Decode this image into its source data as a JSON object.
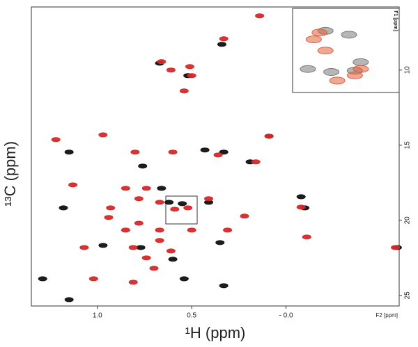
{
  "chart_data": [
    {
      "type": "scatter",
      "xlabel": "¹H (ppm)",
      "ylabel": "¹³C (ppm)",
      "x_unit_label": "F2 [ppm]",
      "xlim": [
        1.35,
        -0.6
      ],
      "ylim": [
        25.7,
        5.8
      ],
      "xticks": [
        {
          "value": 1,
          "label": "1.0"
        },
        0.5,
        {
          "value": 0,
          "label": "- 0.0"
        }
      ],
      "yticks": [
        10,
        15,
        20,
        25
      ],
      "series": [
        {
          "color": "#111111",
          "x": [
            0.34,
            0.67,
            0.52,
            0.43,
            0.33,
            1.15,
            0.76,
            0.66,
            1.18,
            0.62,
            0.55,
            -0.08,
            -0.1,
            0.35,
            0.97,
            0.77,
            0.6,
            1.29,
            1.15,
            -0.59,
            0.33,
            0.54,
            0.41,
            0.09,
            0.19
          ],
          "y": [
            8.29,
            9.54,
            10.37,
            15.32,
            15.46,
            15.46,
            16.39,
            17.87,
            19.17,
            18.8,
            18.89,
            18.43,
            19.17,
            21.48,
            21.67,
            21.81,
            22.59,
            23.89,
            25.28,
            21.81,
            24.35,
            23.89,
            18.8,
            14.4,
            16.11
          ]
        },
        {
          "color": "#d42a2a",
          "x": [
            0.14,
            0.33,
            0.66,
            0.51,
            0.61,
            0.5,
            0.54,
            0.97,
            1.22,
            0.6,
            0.8,
            0.16,
            1.13,
            0.85,
            0.74,
            0.78,
            0.67,
            0.59,
            0.52,
            0.41,
            0.93,
            0.94,
            0.78,
            0.67,
            0.85,
            1.07,
            0.81,
            0.74,
            0.7,
            1.02,
            0.81,
            0.5,
            0.31,
            0.22,
            -0.08,
            -0.11,
            -0.58,
            0.67,
            0.61,
            0.09,
            0.36
          ],
          "y": [
            6.39,
            7.92,
            9.44,
            9.77,
            10.0,
            10.37,
            11.39,
            14.31,
            14.63,
            15.46,
            15.46,
            16.11,
            17.64,
            17.87,
            17.87,
            18.56,
            18.8,
            19.26,
            19.17,
            18.56,
            19.17,
            19.81,
            20.19,
            20.65,
            20.65,
            21.81,
            21.81,
            22.5,
            23.19,
            23.89,
            24.12,
            20.65,
            20.65,
            19.72,
            19.12,
            21.11,
            21.81,
            21.34,
            22.04,
            14.4,
            15.65
          ]
        }
      ]
    },
    {
      "type": "scatter",
      "ylabel": "F1 [ppm]",
      "xlim": [
        0.64,
        0.48
      ],
      "ylim": [
        20.28,
        18.43
      ],
      "series": [
        {
          "color": "#7a7a7a",
          "x": [
            0.59,
            0.55,
            0.62,
            0.53,
            0.54,
            0.58
          ],
          "y": [
            18.89,
            18.98,
            19.78,
            19.62,
            19.82,
            19.85
          ]
        },
        {
          "color": "#e0603c",
          "x": [
            0.6,
            0.61,
            0.59,
            0.57,
            0.54,
            0.53
          ],
          "y": [
            18.93,
            19.09,
            19.35,
            20.05,
            19.93,
            19.78
          ]
        }
      ]
    }
  ]
}
